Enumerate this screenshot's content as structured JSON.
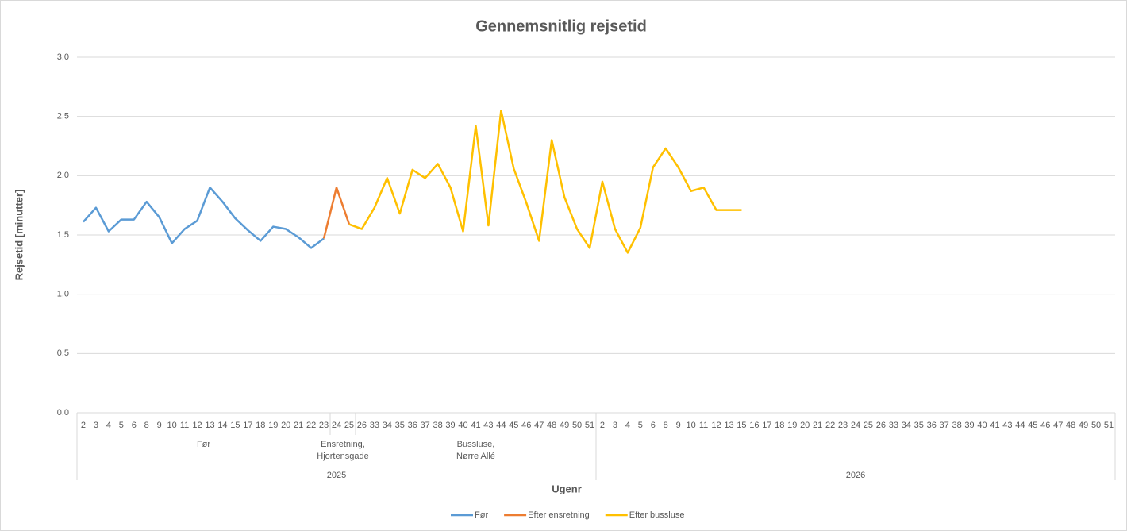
{
  "chart_data": {
    "type": "line",
    "title": "Gennemsnitlig rejsetid",
    "y_label": "Rejsetid [minutter]",
    "x_label": "Ugenr",
    "category_tree": [
      {
        "name": "2025",
        "groups": [
          {
            "name": [
              "Før"
            ],
            "categories": [
              "2",
              "3",
              "4",
              "5",
              "6",
              "8",
              "9",
              "10",
              "11",
              "12",
              "13",
              "14",
              "15",
              "17",
              "18",
              "19",
              "20",
              "21",
              "22",
              "23"
            ]
          },
          {
            "name": [
              "Ensretning,",
              "Hjortensgade"
            ],
            "categories": [
              "24",
              "25"
            ]
          },
          {
            "name": [
              "Bussluse,",
              "Nørre Allé"
            ],
            "categories": [
              "26",
              "33",
              "34",
              "35",
              "36",
              "37",
              "38",
              "39",
              "40",
              "41",
              "43",
              "44",
              "45",
              "46",
              "47",
              "48",
              "49",
              "50",
              "51"
            ]
          }
        ]
      },
      {
        "name": "2026",
        "groups": [
          {
            "categories": [
              "2",
              "3",
              "4",
              "5",
              "6",
              "8",
              "9",
              "10",
              "11",
              "12",
              "13",
              "15",
              "16",
              "17",
              "18",
              "19",
              "20",
              "21",
              "22",
              "23",
              "24",
              "25",
              "26",
              "33",
              "34",
              "35",
              "36",
              "37",
              "38",
              "39",
              "40",
              "41",
              "43",
              "44",
              "45",
              "46",
              "47",
              "48",
              "49",
              "50",
              "51"
            ]
          }
        ]
      }
    ],
    "series": [
      {
        "name": "Før",
        "color": "#5b9bd5",
        "values": [
          1.61,
          1.73,
          1.53,
          1.63,
          1.63,
          1.78,
          1.65,
          1.43,
          1.55,
          1.62,
          1.9,
          1.78,
          1.64,
          1.54,
          1.45,
          1.57,
          1.55,
          1.48,
          1.39,
          1.47,
          null,
          null,
          null,
          null,
          null,
          null,
          null,
          null,
          null,
          null,
          null,
          null,
          null,
          null,
          null,
          null,
          null,
          null,
          null,
          null,
          null,
          null,
          null,
          null,
          null,
          null,
          null,
          null,
          null,
          null,
          null,
          null,
          null,
          null,
          null,
          null,
          null,
          null,
          null,
          null,
          null,
          null,
          null,
          null,
          null,
          null,
          null,
          null,
          null,
          null,
          null,
          null,
          null,
          null,
          null,
          null,
          null,
          null,
          null,
          null,
          null,
          null
        ]
      },
      {
        "name": "Efter ensretning",
        "color": "#ed7d31",
        "values": [
          null,
          null,
          null,
          null,
          null,
          null,
          null,
          null,
          null,
          null,
          null,
          null,
          null,
          null,
          null,
          null,
          null,
          null,
          null,
          1.47,
          1.9,
          1.59,
          null,
          null,
          null,
          null,
          null,
          null,
          null,
          null,
          null,
          null,
          null,
          null,
          null,
          null,
          null,
          null,
          null,
          null,
          null,
          null,
          null,
          null,
          null,
          null,
          null,
          null,
          null,
          null,
          null,
          null,
          null,
          null,
          null,
          null,
          null,
          null,
          null,
          null,
          null,
          null,
          null,
          null,
          null,
          null,
          null,
          null,
          null,
          null,
          null,
          null,
          null,
          null,
          null,
          null,
          null,
          null,
          null,
          null,
          null,
          null
        ]
      },
      {
        "name": "Efter bussluse",
        "color": "#ffc000",
        "values": [
          null,
          null,
          null,
          null,
          null,
          null,
          null,
          null,
          null,
          null,
          null,
          null,
          null,
          null,
          null,
          null,
          null,
          null,
          null,
          null,
          null,
          1.59,
          1.55,
          1.73,
          1.98,
          1.68,
          2.05,
          1.98,
          2.1,
          1.9,
          1.53,
          2.42,
          1.58,
          2.55,
          2.06,
          1.77,
          1.45,
          2.3,
          1.82,
          1.55,
          1.39,
          1.95,
          1.55,
          1.35,
          1.56,
          2.07,
          2.23,
          2.07,
          1.87,
          1.9,
          1.71,
          1.71,
          1.71,
          null,
          null,
          null,
          null,
          null,
          null,
          null,
          null,
          null,
          null,
          null,
          null,
          null,
          null,
          null,
          null,
          null,
          null,
          null,
          null,
          null,
          null,
          null,
          null,
          null,
          null,
          null,
          null,
          null
        ]
      }
    ],
    "ylim": [
      0,
      3
    ],
    "yticks": [
      {
        "value": 0,
        "label": "0,0"
      },
      {
        "value": 0.5,
        "label": "0,5"
      },
      {
        "value": 1,
        "label": "1,0"
      },
      {
        "value": 1.5,
        "label": "1,5"
      },
      {
        "value": 2,
        "label": "2,0"
      },
      {
        "value": 2.5,
        "label": "2,5"
      },
      {
        "value": 3,
        "label": "3,0"
      }
    ],
    "grid": true,
    "legend": "bottom"
  }
}
